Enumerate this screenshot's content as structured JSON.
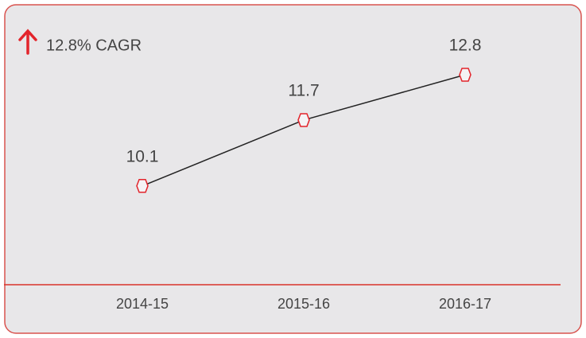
{
  "chart_data": {
    "type": "line",
    "annotation": "12.8% CAGR",
    "categories": [
      "2014-15",
      "2015-16",
      "2016-17"
    ],
    "series": [
      {
        "values": [
          10.1,
          11.7,
          12.8
        ],
        "color": "#222222",
        "marker_color": "#e3242b"
      }
    ],
    "ylim": [
      7.7,
      14.5
    ]
  }
}
